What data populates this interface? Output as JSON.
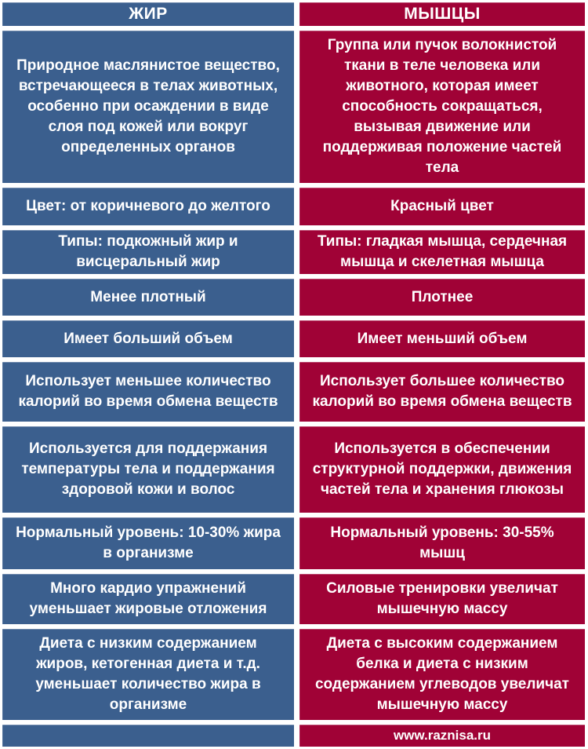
{
  "meta": {
    "type": "comparison-table",
    "language": "ru",
    "colors": {
      "fat_column": "#3B5F8E",
      "muscle_column": "#A00236",
      "divider": "#FFFFFF",
      "text": "#FFFFFF"
    }
  },
  "table": {
    "headers": {
      "fat": "ЖИР",
      "muscle": "МЫШЦЫ"
    },
    "rows": [
      {
        "fat": "Природное маслянистое вещество, встречающееся в телах животных, особенно при осаждении в виде слоя под кожей или вокруг определенных органов",
        "muscle": "Группа или пучок волокнистой ткани в теле человека или животного, которая имеет способность сокращаться, вызывая движение или поддерживая положение частей тела"
      },
      {
        "fat": "Цвет: от коричневого до желтого",
        "muscle": "Красный цвет"
      },
      {
        "fat": "Типы: подкожный жир и висцеральный жир",
        "muscle": "Типы: гладкая мышца, сердечная мышца и скелетная мышца"
      },
      {
        "fat": "Менее плотный",
        "muscle": "Плотнее"
      },
      {
        "fat": "Имеет больший объем",
        "muscle": "Имеет меньший объем"
      },
      {
        "fat": "Использует меньшее количество калорий во время обмена веществ",
        "muscle": "Использует большее количество калорий во время обмена веществ"
      },
      {
        "fat": "Используется для поддержания температуры тела и поддержания здоровой кожи и волос",
        "muscle": "Используется в обеспечении структурной поддержки, движения частей тела и хранения глюкозы"
      },
      {
        "fat": "Нормальный уровень: 10-30% жира в организме",
        "muscle": "Нормальный уровень: 30-55% мышц"
      },
      {
        "fat": "Много кардио упражнений уменьшает жировые отложения",
        "muscle": "Силовые тренировки увеличат мышечную массу"
      },
      {
        "fat": "Диета с низким содержанием жиров, кетогенная диета и т.д. уменьшает количество жира в организме",
        "muscle": "Диета с высоким содержанием белка и диета с низким содержанием углеводов увеличат мышечную массу"
      }
    ],
    "footer": {
      "fat": "",
      "site": "www.raznisa.ru"
    }
  }
}
